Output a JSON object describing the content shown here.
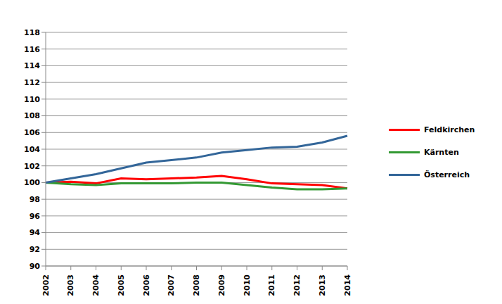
{
  "chart_data": {
    "type": "line",
    "categories": [
      "2002",
      "2003",
      "2004",
      "2005",
      "2006",
      "2007",
      "2008",
      "2009",
      "2010",
      "2011",
      "2012",
      "2013",
      "2014"
    ],
    "series": [
      {
        "name": "Feldkirchen",
        "color": "#ff0000",
        "values": [
          100,
          100.1,
          99.9,
          100.5,
          100.4,
          100.5,
          100.6,
          100.8,
          100.4,
          99.9,
          99.8,
          99.7,
          99.3
        ]
      },
      {
        "name": "Kärnten",
        "color": "#339933",
        "values": [
          100,
          99.8,
          99.7,
          99.9,
          99.9,
          99.9,
          100,
          100,
          99.7,
          99.4,
          99.2,
          99.2,
          99.3
        ]
      },
      {
        "name": "Österreich",
        "color": "#336699",
        "values": [
          100,
          100.5,
          101,
          101.7,
          102.4,
          102.7,
          103,
          103.6,
          103.9,
          104.2,
          104.3,
          104.8,
          105.6
        ]
      }
    ],
    "ylim": [
      90,
      118
    ],
    "yticks": [
      90,
      92,
      94,
      96,
      98,
      100,
      102,
      104,
      106,
      108,
      110,
      112,
      114,
      116,
      118
    ],
    "grid": true,
    "legend": "right"
  }
}
